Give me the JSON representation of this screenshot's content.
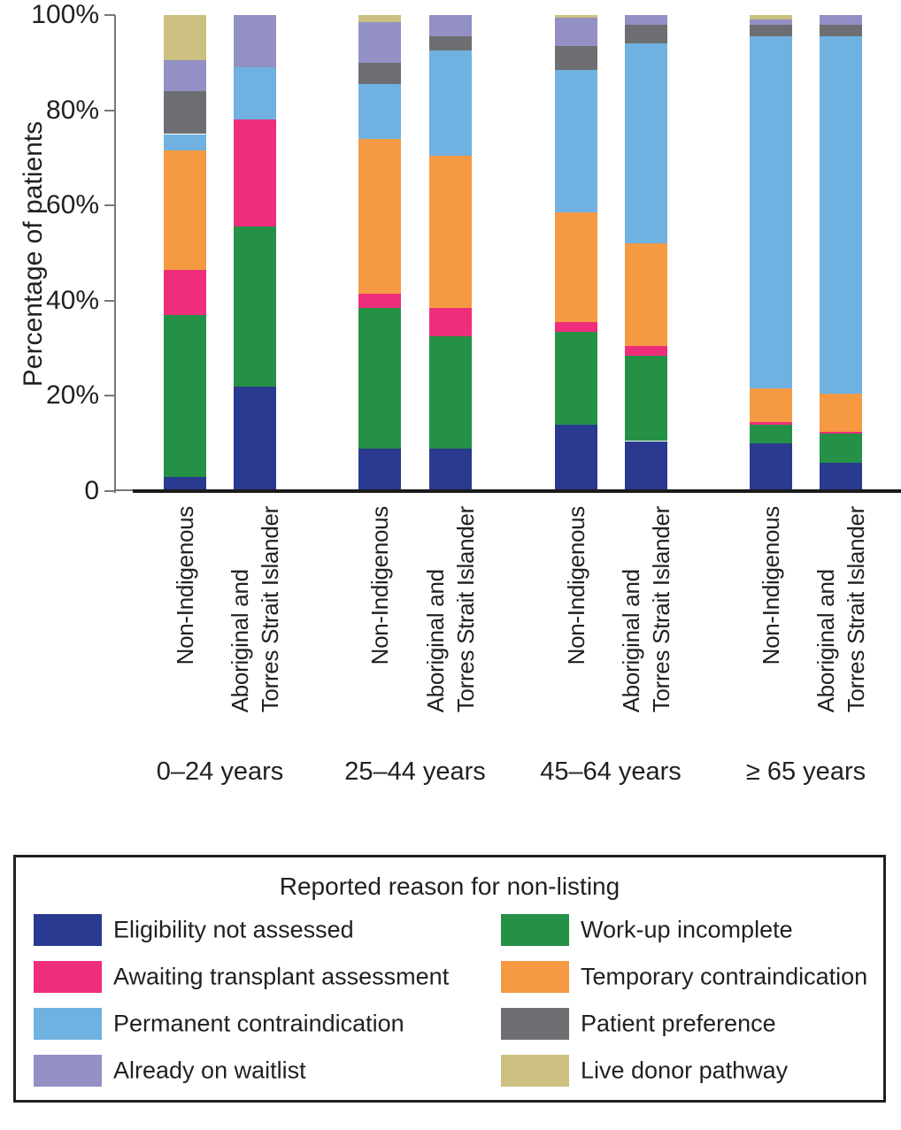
{
  "chart_data": {
    "type": "bar",
    "stacked": true,
    "percent_scale": true,
    "ylabel": "Percentage of patients",
    "ylim": [
      0,
      100
    ],
    "y_ticks": [
      "100%",
      "80%",
      "60%",
      "40%",
      "20%",
      "0"
    ],
    "grid": false,
    "group_labels": [
      "0–24 years",
      "25–44 years",
      "45–64 years",
      "≥ 65 years"
    ],
    "categories": [
      {
        "group": "0–24 years",
        "population": "Non-Indigenous"
      },
      {
        "group": "0–24 years",
        "population": "Aboriginal and\nTorres Strait Islander"
      },
      {
        "group": "25–44 years",
        "population": "Non-Indigenous"
      },
      {
        "group": "25–44 years",
        "population": "Aboriginal and\nTorres Strait Islander"
      },
      {
        "group": "45–64 years",
        "population": "Non-Indigenous"
      },
      {
        "group": "45–64 years",
        "population": "Aboriginal and\nTorres Strait Islander"
      },
      {
        "group": "≥ 65 years",
        "population": "Non-Indigenous"
      },
      {
        "group": "≥ 65 years",
        "population": "Aboriginal and\nTorres Strait Islander"
      }
    ],
    "series": [
      {
        "name": "Eligibility not assessed",
        "color": "#293a90",
        "values": [
          3,
          22,
          9,
          9,
          14,
          10.5,
          10,
          6
        ]
      },
      {
        "name": "Work-up incomplete",
        "color": "#249146",
        "values": [
          34,
          33.5,
          29.5,
          23.5,
          19.5,
          18,
          4,
          6
        ]
      },
      {
        "name": "Awaiting transplant assessment",
        "color": "#ee2e7d",
        "values": [
          9.5,
          22.5,
          3,
          6,
          2,
          2,
          0.5,
          0.5
        ]
      },
      {
        "name": "Temporary contraindication",
        "color": "#f59a42",
        "values": [
          25,
          0,
          32.5,
          32,
          23,
          21.5,
          7,
          8
        ]
      },
      {
        "name": "Permanent contraindication",
        "color": "#6fb1e0",
        "values": [
          3.5,
          11,
          11.5,
          22,
          30,
          42,
          74,
          75
        ]
      },
      {
        "name": "Patient preference",
        "color": "#6d6e71",
        "values": [
          9,
          0,
          4.5,
          3,
          5,
          4,
          2.5,
          2.5
        ]
      },
      {
        "name": "Already on waitlist",
        "color": "#9390c5",
        "values": [
          6.5,
          11,
          8.5,
          4.5,
          6,
          2,
          1,
          2
        ]
      },
      {
        "name": "Live donor pathway",
        "color": "#cbc07f",
        "values": [
          9.5,
          0,
          1.5,
          0,
          0.5,
          0,
          1,
          0
        ]
      }
    ]
  },
  "legend": {
    "title": "Reported reason for non-listing",
    "items": [
      {
        "label": "Eligibility not assessed",
        "color": "#293a90"
      },
      {
        "label": "Work-up incomplete",
        "color": "#249146"
      },
      {
        "label": "Awaiting transplant assessment",
        "color": "#ee2e7d"
      },
      {
        "label": "Temporary contraindication",
        "color": "#f59a42"
      },
      {
        "label": "Permanent contraindication",
        "color": "#6fb1e0"
      },
      {
        "label": "Patient preference",
        "color": "#6d6e71"
      },
      {
        "label": "Already on waitlist",
        "color": "#9390c5"
      },
      {
        "label": "Live donor pathway",
        "color": "#cbc07f"
      }
    ]
  }
}
